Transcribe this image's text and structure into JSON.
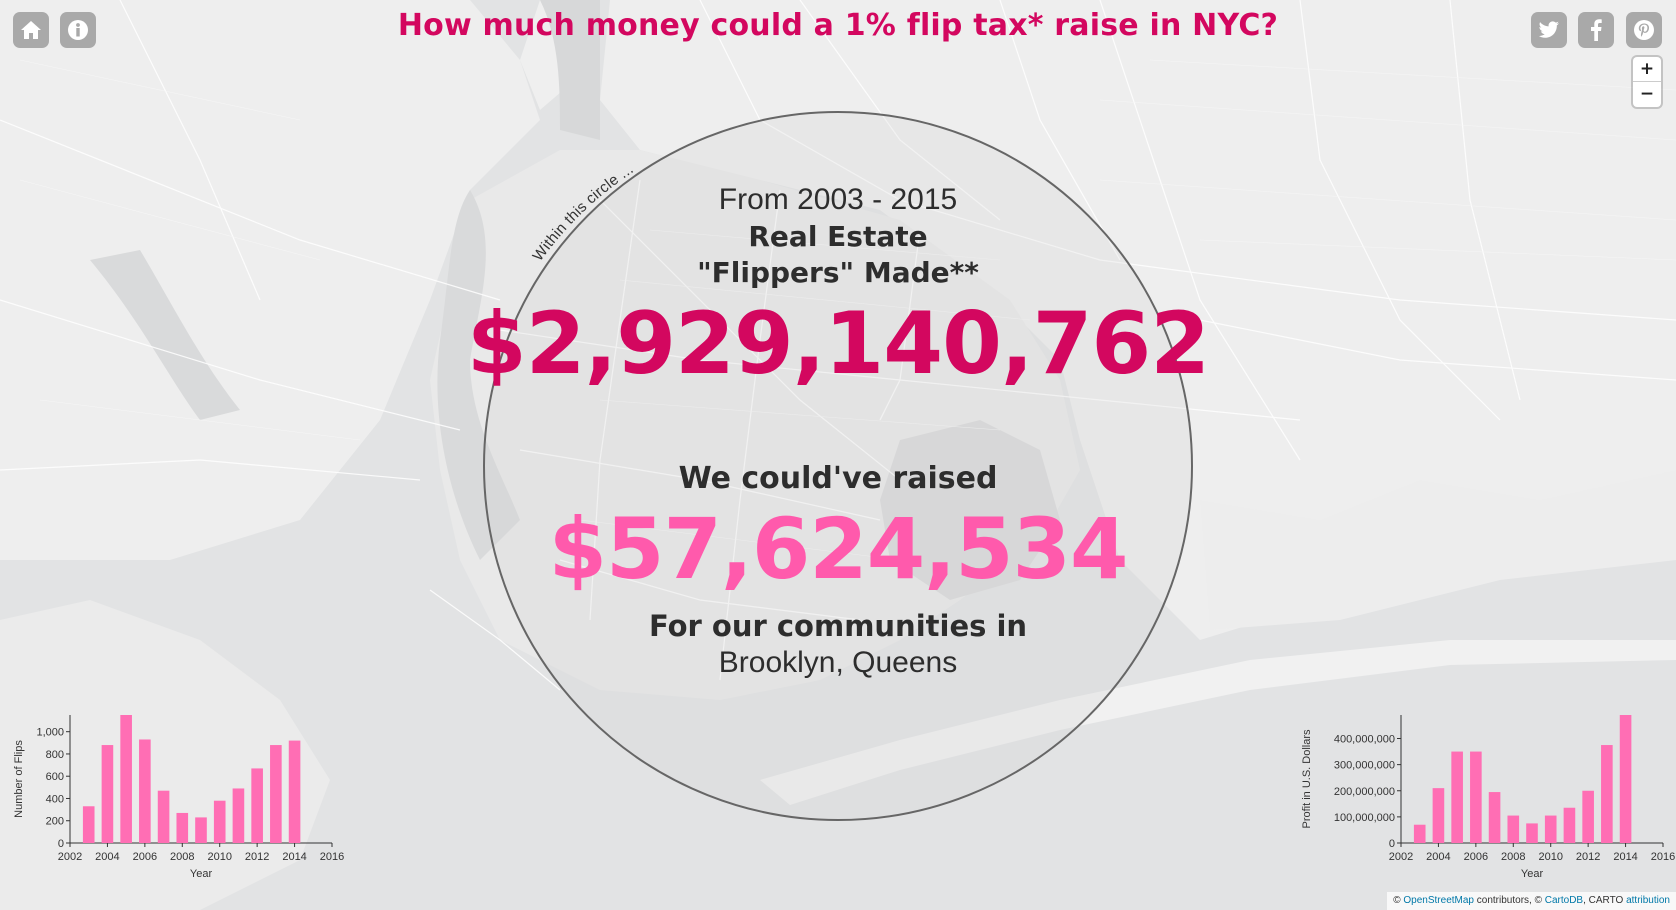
{
  "header": {
    "title": "How much money could a 1% flip tax* raise in NYC?",
    "left_buttons": [
      {
        "icon": "home-icon"
      },
      {
        "icon": "info-icon"
      }
    ],
    "share_buttons": [
      {
        "icon": "twitter-icon"
      },
      {
        "icon": "facebook-icon"
      },
      {
        "icon": "pinterest-icon"
      }
    ]
  },
  "zoom": {
    "in_label": "+",
    "out_label": "−"
  },
  "circle": {
    "arc_label": "Within this circle ...",
    "period": "From 2003 - 2015",
    "real_estate": "Real Estate",
    "flippers_made": "\"Flippers\" Made**",
    "amount_made": "$2,929,140,762",
    "raise_label": "We could've raised",
    "amount_raised": "$57,624,534",
    "for_label": "For our communities in",
    "places": "Brooklyn, Queens"
  },
  "attribution": {
    "prefix": "©",
    "osm_link": "OpenStreetMap",
    "middle": " contributors, ©",
    "carto_link": "CartoDB",
    "suffix": ", CARTO",
    "attribution_link": "attribution"
  },
  "colors": {
    "accent_dark": "#d3075f",
    "accent_light": "#ff5aac",
    "bar": "#ff6eb4",
    "button_bg": "#a9a9a9"
  },
  "chart_data": [
    {
      "type": "bar",
      "name": "flips",
      "x": [
        2003,
        2004,
        2005,
        2006,
        2007,
        2008,
        2009,
        2010,
        2011,
        2012,
        2013,
        2014,
        2015
      ],
      "values": [
        330,
        880,
        1150,
        930,
        470,
        270,
        230,
        380,
        490,
        670,
        880,
        920,
        0
      ],
      "xlabel": "Year",
      "ylabel": "Number of Flips",
      "xlim": [
        2002,
        2016
      ],
      "ylim": [
        0,
        1150
      ],
      "xticks": [
        "2002",
        "2004",
        "2006",
        "2008",
        "2010",
        "2012",
        "2014",
        "2016"
      ],
      "yticks": [
        "0",
        "200",
        "400",
        "600",
        "800",
        "1,000"
      ],
      "ytick_values": [
        0,
        200,
        400,
        600,
        800,
        1000
      ]
    },
    {
      "type": "bar",
      "name": "profit",
      "x": [
        2003,
        2004,
        2005,
        2006,
        2007,
        2008,
        2009,
        2010,
        2011,
        2012,
        2013,
        2014,
        2015
      ],
      "values": [
        70000000,
        210000000,
        350000000,
        350000000,
        195000000,
        105000000,
        75000000,
        105000000,
        135000000,
        200000000,
        375000000,
        490000000,
        0
      ],
      "xlabel": "Year",
      "ylabel": "Profit in U.S. Dollars",
      "xlim": [
        2002,
        2016
      ],
      "ylim": [
        0,
        490000000
      ],
      "xticks": [
        "2002",
        "2004",
        "2006",
        "2008",
        "2010",
        "2012",
        "2014",
        "2016"
      ],
      "yticks": [
        "0",
        "100,000,000",
        "200,000,000",
        "300,000,000",
        "400,000,000"
      ],
      "ytick_values": [
        0,
        100000000,
        200000000,
        300000000,
        400000000
      ]
    }
  ]
}
